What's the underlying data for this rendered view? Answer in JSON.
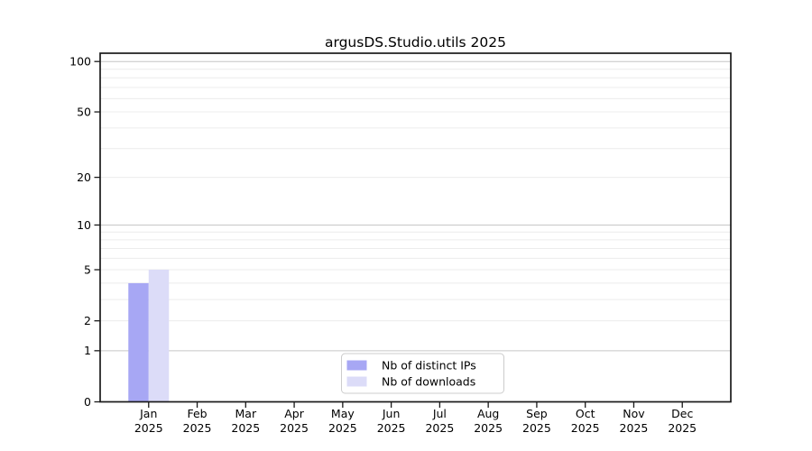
{
  "figure": {
    "background": "#ffffff"
  },
  "chart_data": {
    "type": "bar",
    "title": "argusDS.Studio.utils 2025",
    "categories": [
      "Jan 2025",
      "Feb 2025",
      "Mar 2025",
      "Apr 2025",
      "May 2025",
      "Jun 2025",
      "Jul 2025",
      "Aug 2025",
      "Sep 2025",
      "Oct 2025",
      "Nov 2025",
      "Dec 2025"
    ],
    "months": [
      "Jan",
      "Feb",
      "Mar",
      "Apr",
      "May",
      "Jun",
      "Jul",
      "Aug",
      "Sep",
      "Oct",
      "Nov",
      "Dec"
    ],
    "year": "2025",
    "series": [
      {
        "name": "Nb of distinct IPs",
        "color": "#a7a7f4",
        "values": [
          4,
          0,
          0,
          0,
          0,
          0,
          0,
          0,
          0,
          0,
          0,
          0
        ]
      },
      {
        "name": "Nb of downloads",
        "color": "#dcdcf8",
        "values": [
          5,
          0,
          0,
          0,
          0,
          0,
          0,
          0,
          0,
          0,
          0,
          0
        ]
      }
    ],
    "xlabel": "",
    "ylabel": "",
    "y_axis": {
      "scale": "log1p",
      "tick_values": [
        0,
        1,
        2,
        5,
        10,
        20,
        50,
        100
      ],
      "tick_labels": [
        "0",
        "1",
        "2",
        "5",
        "10",
        "20",
        "50",
        "100"
      ],
      "minor_gridline_values": [
        2,
        3,
        4,
        5,
        6,
        7,
        8,
        9,
        20,
        30,
        40,
        50,
        60,
        70,
        80,
        90
      ],
      "major_gridline_values": [
        1,
        10,
        100
      ],
      "ylim": [
        0,
        112
      ]
    },
    "grid": true,
    "legend": {
      "position": "lower-center",
      "entries": [
        "Nb of distinct IPs",
        "Nb of downloads"
      ]
    },
    "colors": {
      "spine": "#1a1a1a",
      "minor_grid": "#ececec",
      "major_grid": "#c6c6c6",
      "legend_border": "#cccccc",
      "legend_background": "#ffffff",
      "text": "#000000"
    }
  }
}
